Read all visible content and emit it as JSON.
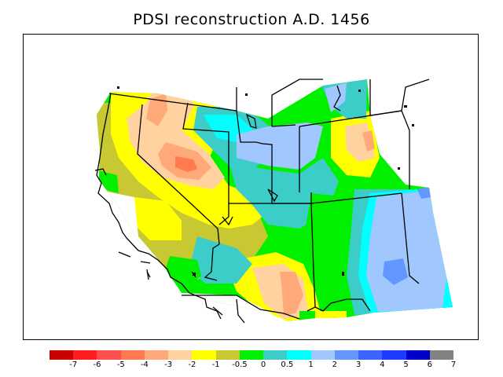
{
  "title": "PDSI reconstruction A.D. 1456",
  "colorbar": {
    "colors": [
      "#c80000",
      "#ff1e1e",
      "#ff4e4e",
      "#ff7a4e",
      "#ffa878",
      "#ffd2a0",
      "#ffff00",
      "#c8c832",
      "#00f000",
      "#3ccdc8",
      "#00ffff",
      "#a0c8ff",
      "#6496ff",
      "#3c64ff",
      "#1e3cff",
      "#0000c8",
      "#828282"
    ],
    "labels": [
      "-7",
      "-6",
      "-5",
      "-4",
      "-3",
      "-2",
      "-1",
      "-0.5",
      "0",
      "0.5",
      "1",
      "2",
      "3",
      "4",
      "5",
      "6",
      "7"
    ]
  }
}
